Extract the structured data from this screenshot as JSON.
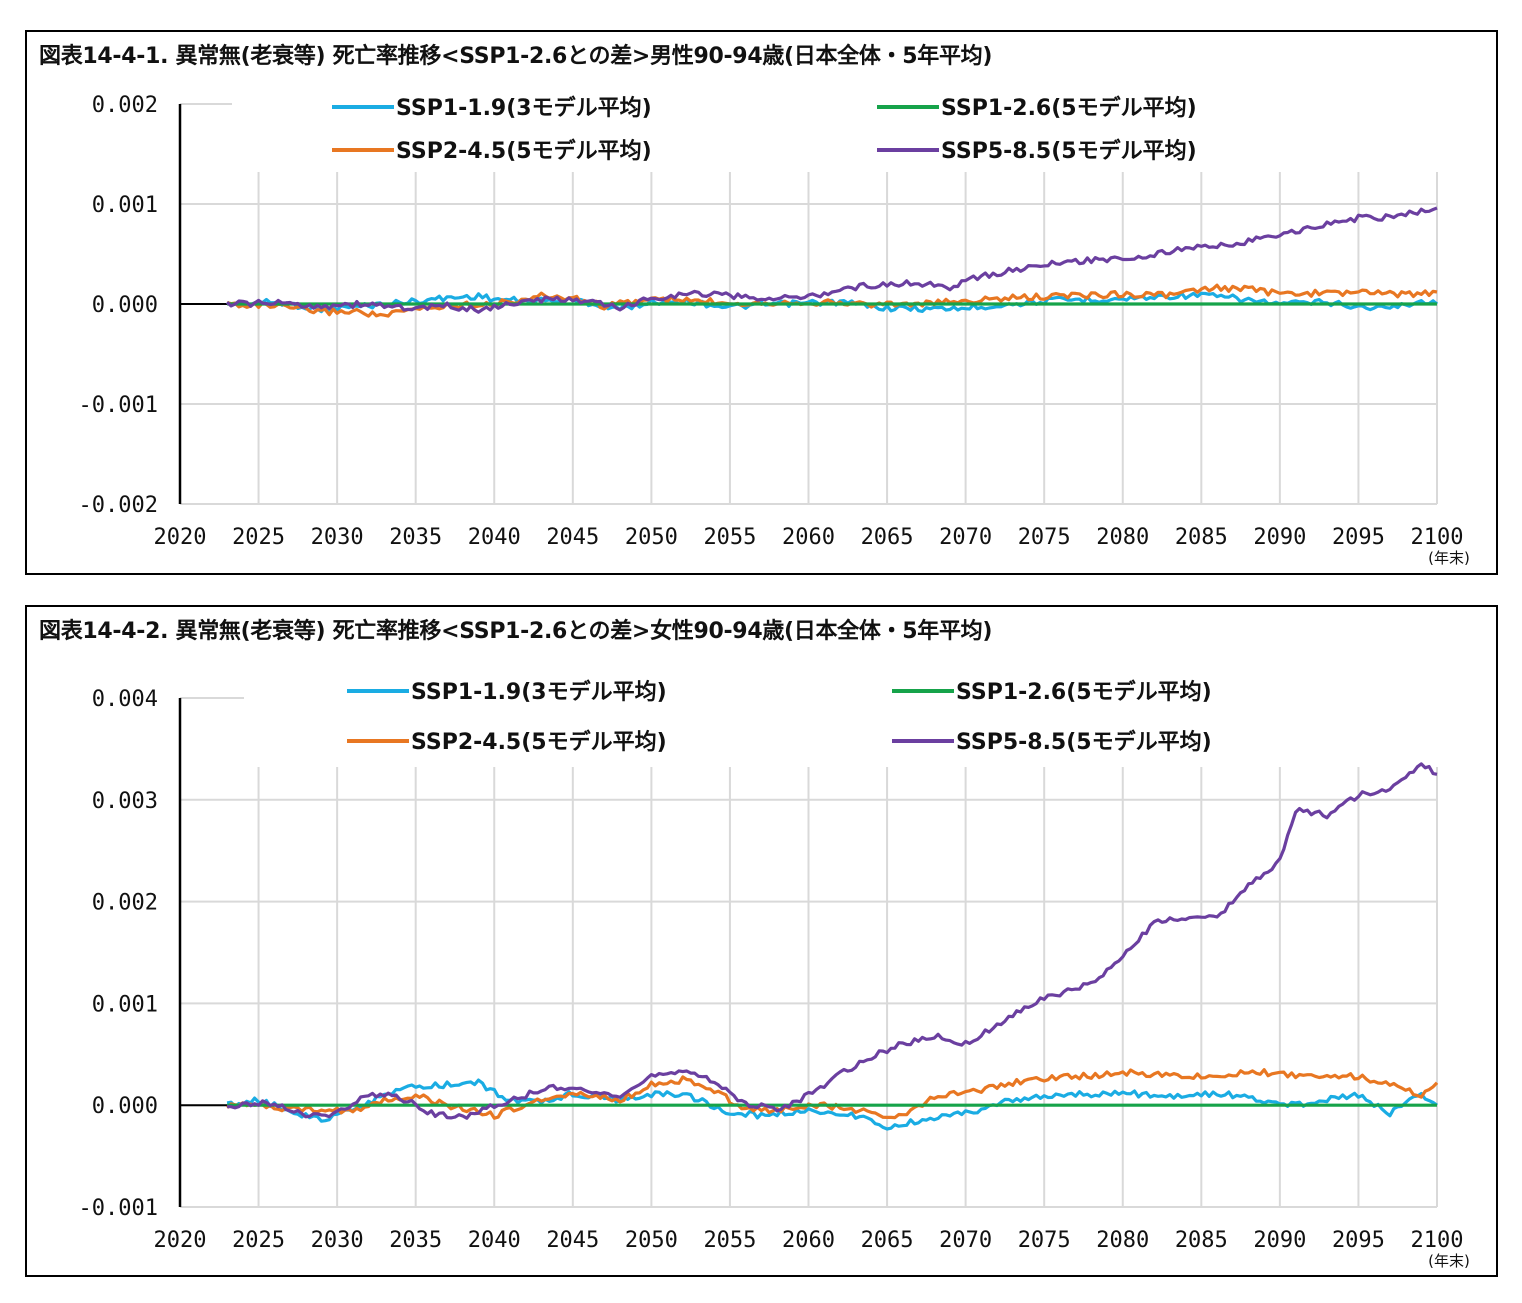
{
  "chart_data": [
    {
      "type": "line",
      "title": "図表14-4-1. 異常無(老衰等) 死亡率推移<SSP1-2.6との差>男性90-94歳(日本全体・5年平均)",
      "xlabel_unit": "(年末)",
      "ylim": [
        -0.002,
        0.002
      ],
      "yticks": [
        0.002,
        0.001,
        0.0,
        -0.001,
        -0.002
      ],
      "ytick_labels": [
        "0.002",
        "0.001",
        "0.000",
        "-0.001",
        "-0.002"
      ],
      "xlim": [
        2020,
        2100
      ],
      "xticks": [
        2020,
        2025,
        2030,
        2035,
        2040,
        2045,
        2050,
        2055,
        2060,
        2065,
        2070,
        2075,
        2080,
        2085,
        2090,
        2095,
        2100
      ],
      "grid": true,
      "legend_position": "top",
      "series": [
        {
          "name": "SSP1-1.9(3モデル平均)",
          "color": "#1AACE3",
          "x": [
            2023,
            2026,
            2029,
            2031,
            2033,
            2035,
            2037,
            2039,
            2040,
            2042,
            2045,
            2048,
            2050,
            2052,
            2055,
            2058,
            2062,
            2065,
            2068,
            2070,
            2073,
            2076,
            2080,
            2083,
            2085,
            2087,
            2090,
            2093,
            2095,
            2097,
            2099,
            2100
          ],
          "y": [
            0.0,
            2e-05,
            -5e-05,
            -3e-05,
            0.0,
            3e-05,
            6e-05,
            8e-05,
            5e-05,
            3e-05,
            4e-05,
            -5e-05,
            2e-05,
            3e-05,
            -3e-05,
            0.0,
            2e-05,
            -4e-05,
            -5e-05,
            -4e-05,
            0.0,
            4e-05,
            5e-05,
            8e-05,
            9e-05,
            6e-05,
            0.0,
            2e-05,
            -3e-05,
            -4e-05,
            3e-05,
            0.0
          ]
        },
        {
          "name": "SSP1-2.6(5モデル平均)",
          "color": "#16A34A",
          "x": [
            2023,
            2100
          ],
          "y": [
            0.0,
            0.0
          ]
        },
        {
          "name": "SSP2-4.5(5モデル平均)",
          "color": "#E87722",
          "x": [
            2023,
            2026,
            2029,
            2031,
            2033,
            2035,
            2037,
            2039,
            2041,
            2043,
            2045,
            2047,
            2050,
            2053,
            2056,
            2060,
            2064,
            2067,
            2070,
            2073,
            2076,
            2080,
            2083,
            2086,
            2088,
            2090,
            2093,
            2096,
            2098,
            2100
          ],
          "y": [
            0.0,
            -2e-05,
            -8e-05,
            -7e-05,
            -0.00012,
            -5e-05,
            -2e-05,
            0.0,
            2e-05,
            8e-05,
            6e-05,
            -2e-05,
            5e-05,
            3e-05,
            1e-05,
            2e-05,
            0.0,
            0.0,
            3e-05,
            6e-05,
            8e-05,
            0.0001,
            9e-05,
            0.00016,
            0.00015,
            0.0001,
            0.00011,
            0.00012,
            9e-05,
            0.00012
          ]
        },
        {
          "name": "SSP5-8.5(5モデル平均)",
          "color": "#6B3FA0",
          "x": [
            2023,
            2026,
            2029,
            2032,
            2035,
            2037,
            2039,
            2041,
            2043,
            2045,
            2048,
            2050,
            2053,
            2055,
            2058,
            2061,
            2063,
            2065,
            2067,
            2069,
            2071,
            2073,
            2075,
            2078,
            2081,
            2084,
            2087,
            2089,
            2091,
            2093,
            2095,
            2097,
            2099,
            2100
          ],
          "y": [
            0.0,
            1e-05,
            -2e-05,
            0.0,
            -5e-05,
            -2e-05,
            -6e-05,
            0.0,
            4e-05,
            5e-05,
            -4e-05,
            6e-05,
            0.00011,
            8e-05,
            5e-05,
            0.0001,
            0.00017,
            0.0002,
            0.00021,
            0.00017,
            0.00028,
            0.00034,
            0.00039,
            0.00044,
            0.00047,
            0.00055,
            0.0006,
            0.00066,
            0.00072,
            0.0008,
            0.00086,
            0.00087,
            0.00093,
            0.00096
          ]
        }
      ]
    },
    {
      "type": "line",
      "title": "図表14-4-2. 異常無(老衰等) 死亡率推移<SSP1-2.6との差>女性90-94歳(日本全体・5年平均)",
      "xlabel_unit": "(年末)",
      "ylim": [
        -0.001,
        0.004
      ],
      "yticks": [
        0.004,
        0.003,
        0.002,
        0.001,
        0.0,
        -0.001
      ],
      "ytick_labels": [
        "0.004",
        "0.003",
        "0.002",
        "0.001",
        "0.000",
        "-0.001"
      ],
      "xlim": [
        2020,
        2100
      ],
      "xticks": [
        2020,
        2025,
        2030,
        2035,
        2040,
        2045,
        2050,
        2055,
        2060,
        2065,
        2070,
        2075,
        2080,
        2085,
        2090,
        2095,
        2100
      ],
      "grid": true,
      "legend_position": "top",
      "series": [
        {
          "name": "SSP1-1.9(3モデル平均)",
          "color": "#1AACE3",
          "x": [
            2023,
            2025,
            2027,
            2029,
            2031,
            2033,
            2035,
            2037,
            2039,
            2041,
            2043,
            2045,
            2048,
            2050,
            2052,
            2055,
            2057,
            2060,
            2063,
            2065,
            2068,
            2070,
            2073,
            2076,
            2080,
            2083,
            2086,
            2089,
            2091,
            2093,
            2095,
            2097,
            2099,
            2100
          ],
          "y": [
            0.0,
            5e-05,
            -5e-05,
            -0.00015,
            -5e-05,
            0.0001,
            0.00018,
            0.0002,
            0.00022,
            5e-05,
            2e-05,
            0.00012,
            5e-05,
            0.0001,
            0.00012,
            -8e-05,
            -0.0001,
            -5e-05,
            -0.0001,
            -0.00022,
            -0.00012,
            -8e-05,
            5e-05,
            0.0001,
            0.00012,
            8e-05,
            0.00012,
            5e-05,
            0.0,
            5e-05,
            0.0001,
            -8e-05,
            0.00012,
            0.0
          ]
        },
        {
          "name": "SSP1-2.6(5モデル平均)",
          "color": "#16A34A",
          "x": [
            2023,
            2100
          ],
          "y": [
            0.0,
            0.0
          ]
        },
        {
          "name": "SSP2-4.5(5モデル平均)",
          "color": "#E87722",
          "x": [
            2023,
            2025,
            2028,
            2031,
            2033,
            2035,
            2037,
            2040,
            2043,
            2045,
            2048,
            2050,
            2052,
            2054,
            2056,
            2058,
            2061,
            2063,
            2066,
            2068,
            2071,
            2074,
            2077,
            2080,
            2083,
            2086,
            2088,
            2090,
            2093,
            2095,
            2097,
            2099,
            2100
          ],
          "y": [
            0.0,
            0.0,
            -5e-05,
            -5e-05,
            5e-05,
            0.0001,
            0.0,
            -0.0001,
            5e-05,
            0.00012,
            5e-05,
            0.0002,
            0.00025,
            0.00015,
            -5e-05,
            -5e-05,
            0.0,
            -5e-05,
            -0.00012,
            8e-05,
            0.00015,
            0.00025,
            0.00028,
            0.00032,
            0.0003,
            0.00028,
            0.00034,
            0.0003,
            0.0003,
            0.00028,
            0.0002,
            0.0001,
            0.00022
          ]
        },
        {
          "name": "SSP5-8.5(5モデル平均)",
          "color": "#6B3FA0",
          "x": [
            2023,
            2026,
            2028,
            2030,
            2032,
            2034,
            2036,
            2038,
            2040,
            2042,
            2044,
            2046,
            2048,
            2050,
            2052,
            2054,
            2056,
            2058,
            2060,
            2062,
            2064,
            2066,
            2068,
            2070,
            2072,
            2074,
            2076,
            2078,
            2080,
            2082,
            2084,
            2086,
            2088,
            2090,
            2091,
            2093,
            2095,
            2097,
            2099,
            2100
          ],
          "y": [
            0.0,
            2e-05,
            -0.0001,
            -8e-05,
            0.00012,
            8e-05,
            -8e-05,
            -0.00012,
            0.0,
            0.0001,
            0.00018,
            0.00015,
            5e-05,
            0.0003,
            0.00035,
            0.00022,
            2e-05,
            -5e-05,
            0.0001,
            0.0003,
            0.00048,
            0.0006,
            0.00068,
            0.0006,
            0.00078,
            0.00098,
            0.0011,
            0.0012,
            0.00145,
            0.0018,
            0.00185,
            0.00185,
            0.00215,
            0.0024,
            0.0029,
            0.00285,
            0.00305,
            0.0031,
            0.00335,
            0.00325
          ]
        }
      ]
    }
  ]
}
